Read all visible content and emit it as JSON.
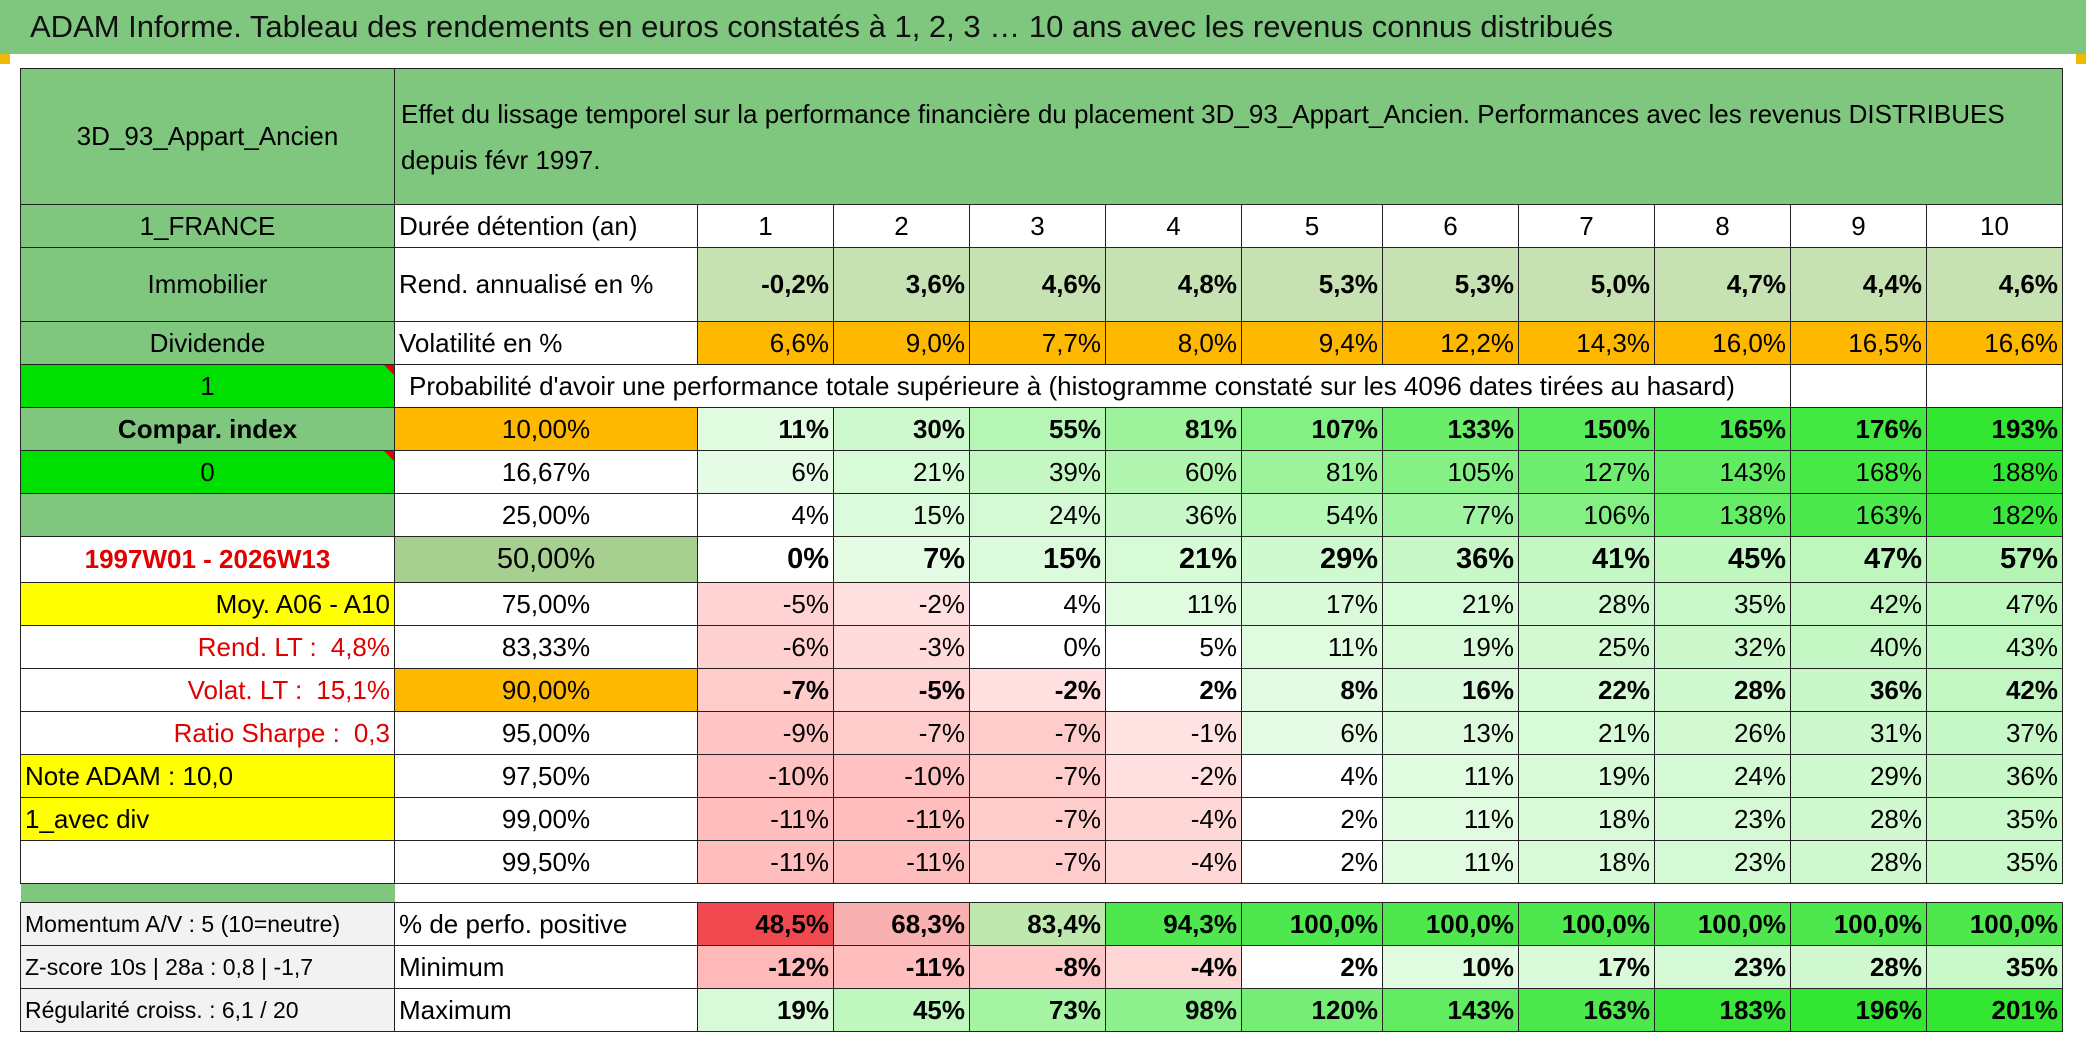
{
  "title": "ADAM Informe. Tableau des rendements en euros constatés à 1, 2, 3 … 10 ans avec les revenus connus distribués",
  "left": {
    "fund": "3D_93_Appart_Ancien",
    "country": "1_FRANCE",
    "category": "Immobilier",
    "dividend": "Dividende",
    "flag1": "1",
    "compar_index": "Compar. index",
    "flag2": "0",
    "period": "1997W01 - 2026W13",
    "moy": "Moy. A06 - A10",
    "rend_lt_label": "Rend. LT :",
    "rend_lt_value": "4,8%",
    "volat_lt_label": "Volat. LT :",
    "volat_lt_value": "15,1%",
    "sharpe_label": "Ratio Sharpe :",
    "sharpe_value": "0,3",
    "note": "Note ADAM : 10,0",
    "avec_div": "1_avec div",
    "momentum": "Momentum A/V : 5 (10=neutre)",
    "zscore": "Z-score 10s | 28a : 0,8 | -1,7",
    "regularite": "Régularité croiss. : 6,1 / 20"
  },
  "header_desc": "Effet du lissage temporel sur la performance financière du placement 3D_93_Appart_Ancien. Performances avec les revenus DISTRIBUES depuis févr 1997.",
  "duration_label": "Durée détention (an)",
  "years": [
    "1",
    "2",
    "3",
    "4",
    "5",
    "6",
    "7",
    "8",
    "9",
    "10"
  ],
  "rend_label": "Rend. annualisé en %",
  "rend": [
    "-0,2%",
    "3,6%",
    "4,6%",
    "4,8%",
    "5,3%",
    "5,3%",
    "5,0%",
    "4,7%",
    "4,4%",
    "4,6%"
  ],
  "vol_label": "Volatilité en %",
  "vol": [
    "6,6%",
    "9,0%",
    "7,7%",
    "8,0%",
    "9,4%",
    "12,2%",
    "14,3%",
    "16,0%",
    "16,5%",
    "16,6%"
  ],
  "prob_label": "Probabilité d'avoir une performance totale supérieure à (histogramme constaté sur les 4096 dates tirées au hasard)",
  "prob_rows": [
    {
      "p": "10,00%",
      "v": [
        "11%",
        "30%",
        "55%",
        "81%",
        "107%",
        "133%",
        "150%",
        "165%",
        "176%",
        "193%"
      ]
    },
    {
      "p": "16,67%",
      "v": [
        "6%",
        "21%",
        "39%",
        "60%",
        "81%",
        "105%",
        "127%",
        "143%",
        "168%",
        "188%"
      ]
    },
    {
      "p": "25,00%",
      "v": [
        "4%",
        "15%",
        "24%",
        "36%",
        "54%",
        "77%",
        "106%",
        "138%",
        "163%",
        "182%"
      ]
    },
    {
      "p": "50,00%",
      "v": [
        "0%",
        "7%",
        "15%",
        "21%",
        "29%",
        "36%",
        "41%",
        "45%",
        "47%",
        "57%"
      ]
    },
    {
      "p": "75,00%",
      "v": [
        "-5%",
        "-2%",
        "4%",
        "11%",
        "17%",
        "21%",
        "28%",
        "35%",
        "42%",
        "47%"
      ]
    },
    {
      "p": "83,33%",
      "v": [
        "-6%",
        "-3%",
        "0%",
        "5%",
        "11%",
        "19%",
        "25%",
        "32%",
        "40%",
        "43%"
      ]
    },
    {
      "p": "90,00%",
      "v": [
        "-7%",
        "-5%",
        "-2%",
        "2%",
        "8%",
        "16%",
        "22%",
        "28%",
        "36%",
        "42%"
      ]
    },
    {
      "p": "95,00%",
      "v": [
        "-9%",
        "-7%",
        "-7%",
        "-1%",
        "6%",
        "13%",
        "21%",
        "26%",
        "31%",
        "37%"
      ]
    },
    {
      "p": "97,50%",
      "v": [
        "-10%",
        "-10%",
        "-7%",
        "-2%",
        "4%",
        "11%",
        "19%",
        "24%",
        "29%",
        "36%"
      ]
    },
    {
      "p": "99,00%",
      "v": [
        "-11%",
        "-11%",
        "-7%",
        "-4%",
        "2%",
        "11%",
        "18%",
        "23%",
        "28%",
        "35%"
      ]
    },
    {
      "p": "99,50%",
      "v": [
        "-11%",
        "-11%",
        "-7%",
        "-4%",
        "2%",
        "11%",
        "18%",
        "23%",
        "28%",
        "35%"
      ]
    }
  ],
  "pos_label": "% de perfo. positive",
  "pos": [
    "48,5%",
    "68,3%",
    "83,4%",
    "94,3%",
    "100,0%",
    "100,0%",
    "100,0%",
    "100,0%",
    "100,0%",
    "100,0%"
  ],
  "min_label": "Minimum",
  "min": [
    "-12%",
    "-11%",
    "-8%",
    "-4%",
    "2%",
    "10%",
    "17%",
    "23%",
    "28%",
    "35%"
  ],
  "max_label": "Maximum",
  "max": [
    "19%",
    "45%",
    "73%",
    "98%",
    "120%",
    "143%",
    "163%",
    "183%",
    "196%",
    "201%"
  ]
}
